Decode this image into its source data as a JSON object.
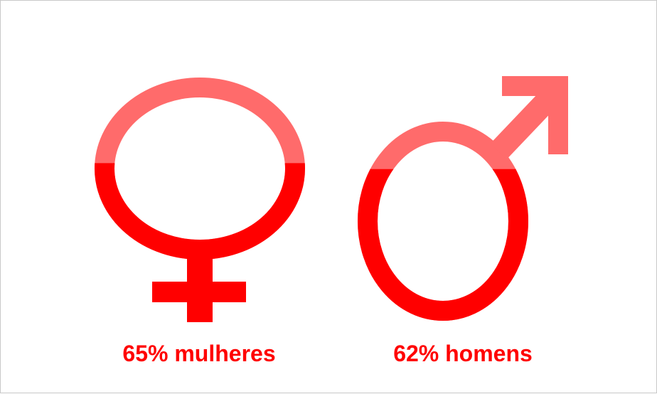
{
  "chart_data": {
    "type": "pictograph",
    "unit": "%",
    "colors": {
      "filled": "#ff0000",
      "unfilled": "#ff6b6b"
    },
    "series": [
      {
        "icon": "female-symbol-icon",
        "value": 65,
        "label": "65% mulheres"
      },
      {
        "icon": "male-symbol-icon",
        "value": 62,
        "label": "62% homens"
      }
    ]
  }
}
